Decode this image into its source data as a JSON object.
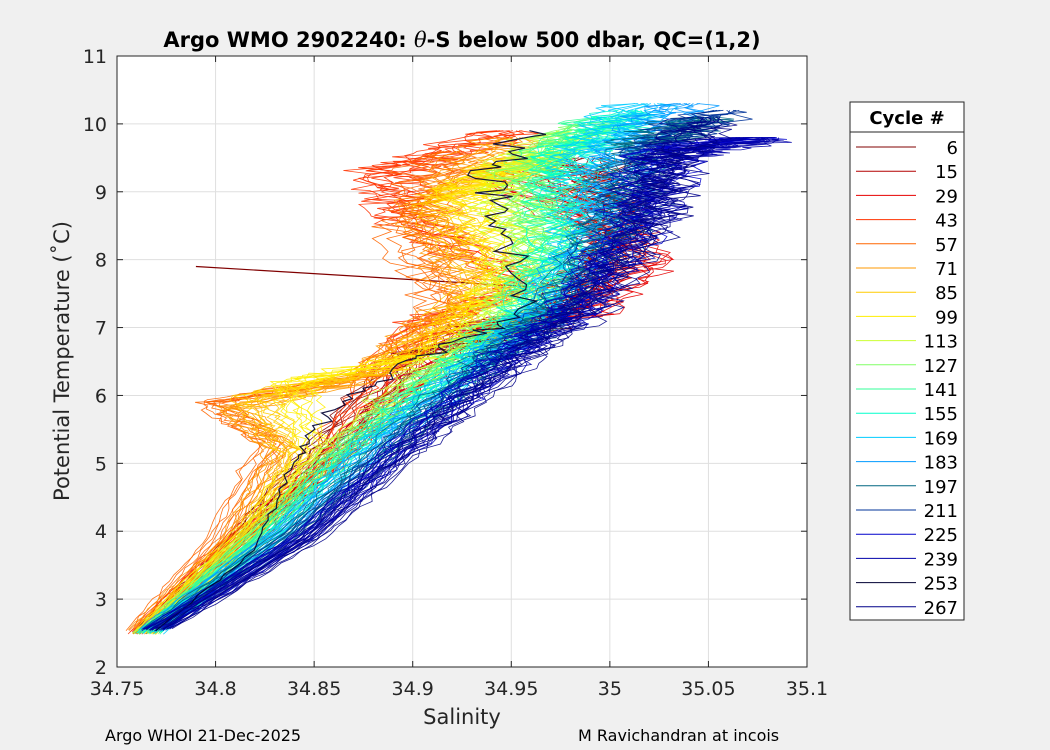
{
  "chart_data": {
    "type": "line",
    "title": "Argo WMO 2902240: θ-S below 500 dbar,  QC=(1,2)",
    "title_prefix": "Argo WMO 2902240: ",
    "title_theta": "θ",
    "title_suffix": "-S below 500 dbar,  QC=(1,2)",
    "xlabel": "Salinity",
    "ylabel": "Potential Temperature (˚C)",
    "xlim": [
      34.75,
      35.1
    ],
    "ylim": [
      2,
      11
    ],
    "xticks": [
      "34.75",
      "34.8",
      "34.85",
      "34.9",
      "34.95",
      "35",
      "35.05",
      "35.1"
    ],
    "yticks": [
      "2",
      "3",
      "4",
      "5",
      "6",
      "7",
      "8",
      "9",
      "10",
      "11"
    ],
    "grid": true,
    "legend": {
      "title": "Cycle #",
      "placement": "outside-right",
      "entries": [
        {
          "label": "6",
          "color": "#800000"
        },
        {
          "label": "15",
          "color": "#b30000"
        },
        {
          "label": "29",
          "color": "#e60000"
        },
        {
          "label": "43",
          "color": "#ff3300"
        },
        {
          "label": "57",
          "color": "#ff6600"
        },
        {
          "label": "71",
          "color": "#ff9900"
        },
        {
          "label": "85",
          "color": "#ffcc00"
        },
        {
          "label": "99",
          "color": "#ffee00"
        },
        {
          "label": "113",
          "color": "#ccff33"
        },
        {
          "label": "127",
          "color": "#80ff66"
        },
        {
          "label": "141",
          "color": "#33ff99"
        },
        {
          "label": "155",
          "color": "#00ffcc"
        },
        {
          "label": "169",
          "color": "#00ccff"
        },
        {
          "label": "183",
          "color": "#0099ff"
        },
        {
          "label": "197",
          "color": "#006680"
        },
        {
          "label": "211",
          "color": "#003399"
        },
        {
          "label": "225",
          "color": "#0000cc"
        },
        {
          "label": "239",
          "color": "#0000aa"
        },
        {
          "label": "253",
          "color": "#000033"
        },
        {
          "label": "267",
          "color": "#000088"
        }
      ]
    },
    "series": [
      {
        "label": "6",
        "ref": [
          [
            34.765,
            2.5
          ],
          [
            34.8,
            3.5
          ],
          [
            34.84,
            4.8
          ],
          [
            34.9,
            6.6
          ],
          [
            34.97,
            7.0
          ],
          [
            35.0,
            8.3
          ],
          [
            34.99,
            9.5
          ]
        ],
        "outlier": [
          [
            34.79,
            7.9
          ],
          [
            34.96,
            7.6
          ]
        ]
      },
      {
        "label": "15",
        "ref": [
          [
            34.766,
            2.55
          ],
          [
            34.82,
            3.9
          ],
          [
            34.86,
            5.0
          ],
          [
            34.93,
            7.0
          ],
          [
            34.98,
            7.3
          ],
          [
            35.01,
            8.5
          ],
          [
            34.98,
            9.4
          ]
        ]
      },
      {
        "label": "29",
        "ref": [
          [
            34.764,
            2.5
          ],
          [
            34.81,
            3.8
          ],
          [
            34.855,
            4.9
          ],
          [
            34.92,
            6.9
          ],
          [
            34.99,
            7.2
          ],
          [
            35.02,
            8.0
          ],
          [
            34.95,
            9.3
          ]
        ]
      },
      {
        "label": "43",
        "ref": [
          [
            34.763,
            2.5
          ],
          [
            34.8,
            3.6
          ],
          [
            34.85,
            4.9
          ],
          [
            34.9,
            7.0
          ],
          [
            34.96,
            7.6
          ],
          [
            34.9,
            8.6
          ],
          [
            34.89,
            9.3
          ],
          [
            34.95,
            9.9
          ]
        ]
      },
      {
        "label": "57",
        "ref": [
          [
            34.762,
            2.55
          ],
          [
            34.8,
            3.8
          ],
          [
            34.83,
            5.3
          ],
          [
            34.8,
            5.9
          ],
          [
            34.88,
            6.3
          ],
          [
            34.92,
            7.2
          ],
          [
            34.9,
            8.5
          ],
          [
            34.92,
            9.6
          ]
        ]
      },
      {
        "label": "71",
        "ref": [
          [
            34.763,
            2.55
          ],
          [
            34.81,
            3.9
          ],
          [
            34.835,
            5.2
          ],
          [
            34.81,
            5.8
          ],
          [
            34.87,
            6.2
          ],
          [
            34.93,
            7.4
          ],
          [
            34.91,
            8.8
          ],
          [
            34.95,
            9.8
          ]
        ]
      },
      {
        "label": "85",
        "ref": [
          [
            34.764,
            2.5
          ],
          [
            34.82,
            4.0
          ],
          [
            34.84,
            5.1
          ],
          [
            34.82,
            6.0
          ],
          [
            34.89,
            6.4
          ],
          [
            34.94,
            7.6
          ],
          [
            34.92,
            8.9
          ],
          [
            34.96,
            9.5
          ]
        ]
      },
      {
        "label": "99",
        "ref": [
          [
            34.765,
            2.5
          ],
          [
            34.82,
            4.1
          ],
          [
            34.85,
            5.2
          ],
          [
            34.84,
            6.2
          ],
          [
            34.91,
            6.6
          ],
          [
            34.95,
            7.8
          ],
          [
            34.93,
            9.0
          ],
          [
            34.97,
            9.6
          ]
        ]
      },
      {
        "label": "113",
        "ref": [
          [
            34.766,
            2.5
          ],
          [
            34.82,
            4.0
          ],
          [
            34.86,
            5.2
          ],
          [
            34.9,
            6.2
          ],
          [
            34.94,
            7.0
          ],
          [
            34.96,
            8.0
          ],
          [
            34.95,
            9.2
          ],
          [
            34.98,
            9.9
          ]
        ]
      },
      {
        "label": "127",
        "ref": [
          [
            34.766,
            2.5
          ],
          [
            34.825,
            4.0
          ],
          [
            34.865,
            5.2
          ],
          [
            34.91,
            6.3
          ],
          [
            34.95,
            7.1
          ],
          [
            34.97,
            8.2
          ],
          [
            34.96,
            9.3
          ],
          [
            34.99,
            10.0
          ]
        ]
      },
      {
        "label": "141",
        "ref": [
          [
            34.767,
            2.5
          ],
          [
            34.83,
            4.1
          ],
          [
            34.87,
            5.3
          ],
          [
            34.92,
            6.4
          ],
          [
            34.955,
            7.2
          ],
          [
            34.975,
            8.3
          ],
          [
            34.97,
            9.4
          ],
          [
            35.0,
            10.1
          ]
        ]
      },
      {
        "label": "155",
        "ref": [
          [
            34.767,
            2.5
          ],
          [
            34.83,
            4.0
          ],
          [
            34.875,
            5.3
          ],
          [
            34.925,
            6.4
          ],
          [
            34.96,
            7.2
          ],
          [
            34.98,
            8.4
          ],
          [
            34.98,
            9.5
          ],
          [
            35.01,
            10.2
          ]
        ]
      },
      {
        "label": "169",
        "ref": [
          [
            34.768,
            2.5
          ],
          [
            34.835,
            4.0
          ],
          [
            34.88,
            5.3
          ],
          [
            34.93,
            6.4
          ],
          [
            34.965,
            7.3
          ],
          [
            34.99,
            8.5
          ],
          [
            34.99,
            9.6
          ],
          [
            35.02,
            10.3
          ]
        ]
      },
      {
        "label": "183",
        "ref": [
          [
            34.768,
            2.55
          ],
          [
            34.835,
            4.0
          ],
          [
            34.885,
            5.3
          ],
          [
            34.935,
            6.5
          ],
          [
            34.97,
            7.3
          ],
          [
            35.0,
            8.6
          ],
          [
            35.01,
            9.6
          ],
          [
            35.04,
            10.3
          ]
        ]
      },
      {
        "label": "197",
        "ref": [
          [
            34.769,
            2.55
          ],
          [
            34.84,
            4.0
          ],
          [
            34.89,
            5.3
          ],
          [
            34.94,
            6.5
          ],
          [
            34.975,
            7.3
          ],
          [
            35.005,
            8.6
          ],
          [
            35.02,
            9.7
          ],
          [
            35.05,
            10.1
          ]
        ]
      },
      {
        "label": "211",
        "ref": [
          [
            34.77,
            2.55
          ],
          [
            34.84,
            3.9
          ],
          [
            34.89,
            5.2
          ],
          [
            34.94,
            6.5
          ],
          [
            34.98,
            7.3
          ],
          [
            35.01,
            8.6
          ],
          [
            35.02,
            9.6
          ],
          [
            35.06,
            10.2
          ]
        ]
      },
      {
        "label": "225",
        "ref": [
          [
            34.77,
            2.55
          ],
          [
            34.845,
            3.9
          ],
          [
            34.895,
            5.2
          ],
          [
            34.945,
            6.5
          ],
          [
            34.985,
            7.3
          ],
          [
            35.015,
            8.6
          ],
          [
            35.03,
            9.6
          ],
          [
            35.07,
            9.8
          ]
        ]
      },
      {
        "label": "239",
        "ref": [
          [
            34.771,
            2.55
          ],
          [
            34.845,
            3.9
          ],
          [
            34.895,
            5.2
          ],
          [
            34.945,
            6.4
          ],
          [
            34.985,
            7.3
          ],
          [
            35.02,
            8.6
          ],
          [
            35.03,
            9.5
          ],
          [
            35.08,
            9.8
          ]
        ]
      },
      {
        "label": "253",
        "ref": [
          [
            34.77,
            2.55
          ],
          [
            34.82,
            3.7
          ],
          [
            34.84,
            5.0
          ],
          [
            34.86,
            5.8
          ],
          [
            34.9,
            6.5
          ],
          [
            34.96,
            7.2
          ],
          [
            34.95,
            8.4
          ],
          [
            34.94,
            9.2
          ],
          [
            34.96,
            9.9
          ]
        ]
      },
      {
        "label": "267",
        "ref": [
          [
            34.772,
            2.55
          ],
          [
            34.85,
            3.9
          ],
          [
            34.9,
            5.2
          ],
          [
            34.95,
            6.4
          ],
          [
            34.99,
            7.3
          ],
          [
            35.02,
            8.5
          ],
          [
            35.03,
            9.4
          ],
          [
            35.05,
            10.1
          ]
        ]
      }
    ]
  },
  "footer": {
    "left": "Argo WHOI 21-Dec-2025",
    "right": "M Ravichandran at incois"
  }
}
